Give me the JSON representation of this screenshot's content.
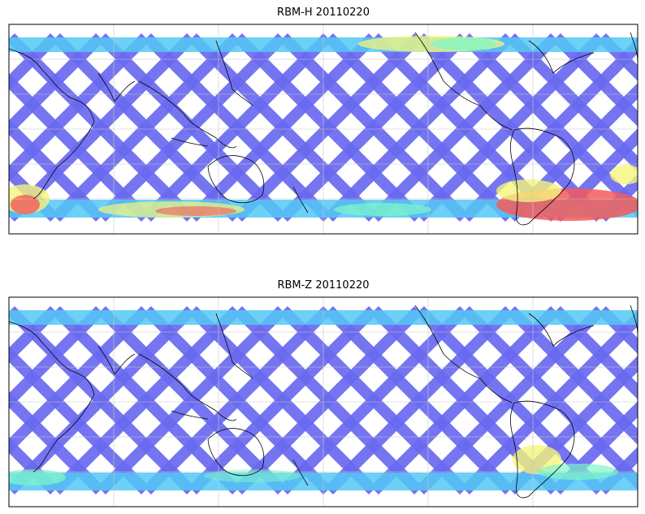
{
  "panels": [
    {
      "title": "RBM-H 20110220",
      "colormap": "jet",
      "colors": {
        "low": "#6a6af0",
        "mid": "#55c8f5",
        "midhigh": "#7df7c8",
        "high": "#f5f57a",
        "max": "#f55a5a"
      }
    },
    {
      "title": "RBM-Z 20110220",
      "colormap": "jet",
      "colors": {
        "low": "#6a6af0",
        "mid": "#55c8f5",
        "midhigh": "#7df7c8",
        "high": "#f5f57a"
      }
    }
  ],
  "map": {
    "projection": "cylindrical",
    "coastlines": true,
    "grid": true,
    "coastline_color": "#000000",
    "grid_color": "#c8c8c8"
  }
}
